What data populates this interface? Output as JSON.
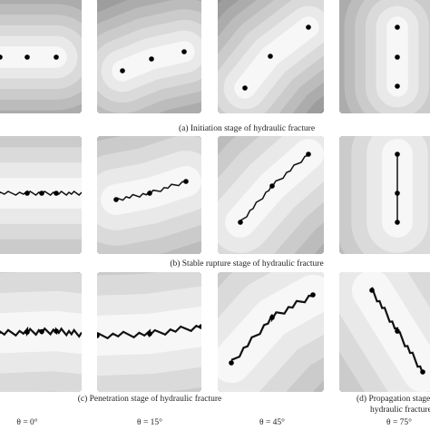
{
  "figure": {
    "captions": [
      "(a) Initiation stage of hydraulic fracture",
      "(b) Stable rupture stage of hydraulic fracture",
      "(c) Penetration stage of hydraulic fracture"
    ],
    "side_caption": [
      "(d) Propagation stage of",
      "hydraulic fracture"
    ],
    "angles": [
      "θ = 0°",
      "θ = 15°",
      "θ = 45°",
      "θ = 75°"
    ]
  }
}
